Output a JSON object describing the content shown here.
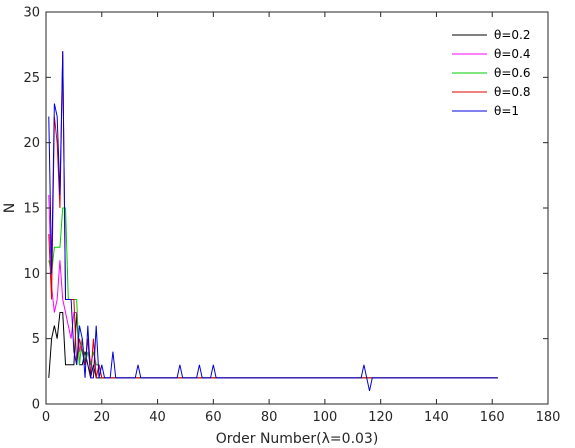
{
  "chart_data": {
    "type": "line",
    "title": "",
    "xlabel": "Order Number(λ=0.03)",
    "ylabel": "N",
    "xlim": [
      0,
      180
    ],
    "ylim": [
      0,
      30
    ],
    "xticks": [
      0,
      20,
      40,
      60,
      80,
      100,
      120,
      140,
      160,
      180
    ],
    "yticks": [
      0,
      5,
      10,
      15,
      20,
      25,
      30
    ],
    "xtick_labels": [
      "0",
      "20",
      "40",
      "60",
      "80",
      "100",
      "120",
      "140",
      "160",
      "180"
    ],
    "ytick_labels": [
      "0",
      "5",
      "10",
      "15",
      "20",
      "25",
      "30"
    ],
    "grid": false,
    "legend_position": "top-right",
    "series": [
      {
        "name": "θ=0.2",
        "color": "#000000",
        "points": [
          [
            1,
            2
          ],
          [
            2,
            5
          ],
          [
            3,
            6
          ],
          [
            4,
            5
          ],
          [
            5,
            7
          ],
          [
            6,
            7
          ],
          [
            7,
            3
          ],
          [
            8,
            3
          ],
          [
            9,
            3
          ],
          [
            10,
            3
          ],
          [
            11,
            7
          ],
          [
            12,
            3
          ],
          [
            13,
            3
          ],
          [
            14,
            4
          ],
          [
            15,
            3
          ],
          [
            16,
            2
          ],
          [
            17,
            3
          ],
          [
            18,
            2
          ],
          [
            19,
            2
          ],
          [
            20,
            2
          ],
          [
            22,
            2
          ],
          [
            25,
            2
          ],
          [
            30,
            2
          ],
          [
            33,
            2
          ],
          [
            40,
            2
          ],
          [
            48,
            2
          ],
          [
            55,
            2
          ],
          [
            60,
            2
          ],
          [
            80,
            2
          ],
          [
            100,
            2
          ],
          [
            114,
            2
          ],
          [
            116,
            2
          ],
          [
            118,
            2
          ],
          [
            140,
            2
          ],
          [
            162,
            2
          ]
        ]
      },
      {
        "name": "θ=0.4",
        "color": "#ff00ff",
        "points": [
          [
            1,
            16
          ],
          [
            2,
            9
          ],
          [
            3,
            7
          ],
          [
            4,
            8
          ],
          [
            5,
            11
          ],
          [
            6,
            8
          ],
          [
            7,
            7
          ],
          [
            8,
            6
          ],
          [
            9,
            5
          ],
          [
            10,
            7
          ],
          [
            11,
            7
          ],
          [
            12,
            4
          ],
          [
            13,
            5
          ],
          [
            14,
            3
          ],
          [
            15,
            5
          ],
          [
            16,
            3
          ],
          [
            17,
            4
          ],
          [
            18,
            3
          ],
          [
            19,
            3
          ],
          [
            20,
            2
          ],
          [
            21,
            2
          ],
          [
            25,
            2
          ],
          [
            30,
            2
          ],
          [
            33,
            2
          ],
          [
            40,
            2
          ],
          [
            48,
            2
          ],
          [
            55,
            2
          ],
          [
            60,
            2
          ],
          [
            80,
            2
          ],
          [
            100,
            2
          ],
          [
            114,
            2
          ],
          [
            116,
            2
          ],
          [
            118,
            2
          ],
          [
            140,
            2
          ],
          [
            162,
            2
          ]
        ]
      },
      {
        "name": "θ=0.6",
        "color": "#00cc00",
        "points": [
          [
            1,
            11
          ],
          [
            2,
            10
          ],
          [
            3,
            12
          ],
          [
            4,
            12
          ],
          [
            5,
            12
          ],
          [
            6,
            15
          ],
          [
            7,
            15
          ],
          [
            8,
            8
          ],
          [
            9,
            8
          ],
          [
            10,
            8
          ],
          [
            11,
            8
          ],
          [
            12,
            3
          ],
          [
            13,
            5
          ],
          [
            14,
            3
          ],
          [
            15,
            4
          ],
          [
            16,
            3
          ],
          [
            17,
            4
          ],
          [
            18,
            3
          ],
          [
            19,
            3
          ],
          [
            20,
            2
          ],
          [
            21,
            2
          ],
          [
            25,
            2
          ],
          [
            30,
            2
          ],
          [
            33,
            2
          ],
          [
            40,
            2
          ],
          [
            48,
            2
          ],
          [
            55,
            2
          ],
          [
            60,
            2
          ],
          [
            80,
            2
          ],
          [
            100,
            2
          ],
          [
            114,
            2
          ],
          [
            116,
            2
          ],
          [
            118,
            2
          ],
          [
            140,
            2
          ],
          [
            162,
            2
          ]
        ]
      },
      {
        "name": "θ=0.8",
        "color": "#dd0000",
        "points": [
          [
            1,
            13
          ],
          [
            2,
            8
          ],
          [
            3,
            22
          ],
          [
            4,
            20
          ],
          [
            5,
            15
          ],
          [
            6,
            27
          ],
          [
            7,
            8
          ],
          [
            8,
            8
          ],
          [
            9,
            8
          ],
          [
            10,
            8
          ],
          [
            11,
            3
          ],
          [
            12,
            5
          ],
          [
            13,
            4
          ],
          [
            14,
            3
          ],
          [
            15,
            5
          ],
          [
            16,
            2
          ],
          [
            17,
            5
          ],
          [
            18,
            2
          ],
          [
            19,
            3
          ],
          [
            20,
            2
          ],
          [
            21,
            2
          ],
          [
            25,
            2
          ],
          [
            30,
            2
          ],
          [
            33,
            2
          ],
          [
            40,
            2
          ],
          [
            48,
            2
          ],
          [
            55,
            2
          ],
          [
            60,
            2
          ],
          [
            80,
            2
          ],
          [
            100,
            2
          ],
          [
            114,
            2
          ],
          [
            116,
            2
          ],
          [
            118,
            2
          ],
          [
            140,
            2
          ],
          [
            162,
            2
          ]
        ]
      },
      {
        "name": "θ=1",
        "color": "#0000dd",
        "points": [
          [
            1,
            22
          ],
          [
            2,
            10
          ],
          [
            3,
            23
          ],
          [
            4,
            22
          ],
          [
            5,
            16
          ],
          [
            6,
            27
          ],
          [
            7,
            8
          ],
          [
            8,
            8
          ],
          [
            9,
            8
          ],
          [
            10,
            4
          ],
          [
            11,
            3
          ],
          [
            12,
            6
          ],
          [
            13,
            5
          ],
          [
            14,
            2
          ],
          [
            15,
            6
          ],
          [
            16,
            2
          ],
          [
            17,
            2
          ],
          [
            18,
            6
          ],
          [
            19,
            2
          ],
          [
            20,
            3
          ],
          [
            21,
            2
          ],
          [
            22,
            2
          ],
          [
            23,
            2
          ],
          [
            24,
            4
          ],
          [
            25,
            2
          ],
          [
            30,
            2
          ],
          [
            32,
            2
          ],
          [
            33,
            3
          ],
          [
            34,
            2
          ],
          [
            40,
            2
          ],
          [
            47,
            2
          ],
          [
            48,
            3
          ],
          [
            49,
            2
          ],
          [
            54,
            2
          ],
          [
            55,
            3
          ],
          [
            56,
            2
          ],
          [
            59,
            2
          ],
          [
            60,
            3
          ],
          [
            61,
            2
          ],
          [
            80,
            2
          ],
          [
            100,
            2
          ],
          [
            113,
            2
          ],
          [
            114,
            3
          ],
          [
            115,
            2
          ],
          [
            116,
            1
          ],
          [
            117,
            2
          ],
          [
            118,
            2
          ],
          [
            140,
            2
          ],
          [
            162,
            2
          ]
        ]
      }
    ]
  }
}
